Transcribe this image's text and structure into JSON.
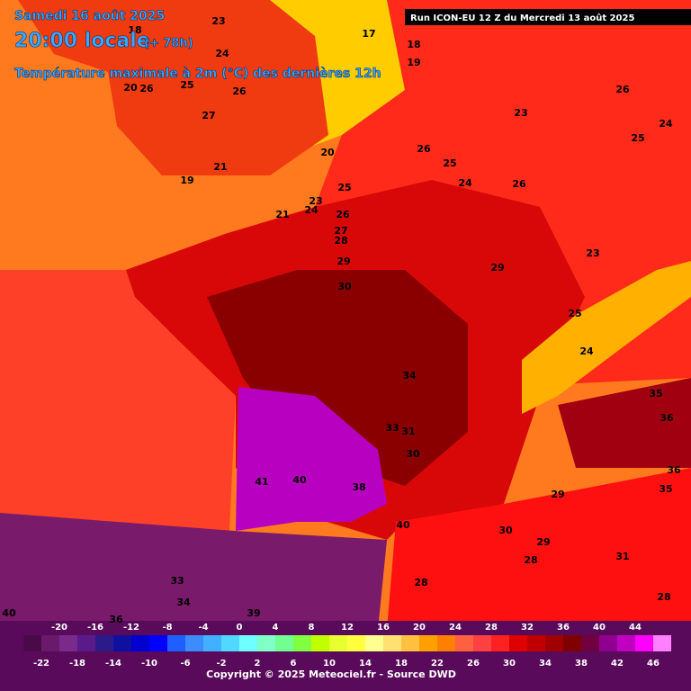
{
  "header": {
    "date": "Samedi 16 août 2025",
    "time": "20:00 locale",
    "lead": "(+ 78h)",
    "field": "Température maximale à 2m (°C) des dernières 12h",
    "run": "Run ICON-EU 12 Z du Mercredi 13 août 2025"
  },
  "map_labels": [
    23,
    18,
    24,
    17,
    18,
    19,
    26,
    20,
    26,
    25,
    26,
    27,
    23,
    24,
    25,
    26,
    25,
    20,
    21,
    19,
    24,
    26,
    25,
    23,
    24,
    26,
    21,
    27,
    28,
    29,
    23,
    29,
    30,
    25,
    24,
    34,
    35,
    36,
    33,
    31,
    30,
    41,
    40,
    38,
    29,
    36,
    35,
    40,
    30,
    29,
    28,
    31,
    33,
    34,
    28,
    28,
    39,
    36,
    40
  ],
  "colorbar": {
    "top_labels": [
      -20,
      -16,
      -12,
      -8,
      -4,
      0,
      4,
      8,
      12,
      16,
      20,
      24,
      28,
      32,
      36,
      40,
      44
    ],
    "bottom_labels": [
      -22,
      -18,
      -14,
      -10,
      -6,
      -2,
      2,
      6,
      10,
      14,
      18,
      22,
      26,
      30,
      34,
      38,
      42,
      46
    ],
    "colors": [
      "#4a0a4a",
      "#6a1a6a",
      "#7a2a8a",
      "#5a1a8a",
      "#2a1a8a",
      "#1010a0",
      "#0000d0",
      "#0000ff",
      "#1f5fff",
      "#3c8cff",
      "#40b0ff",
      "#50d8ff",
      "#70ffff",
      "#80ffc8",
      "#70ff90",
      "#80ff40",
      "#c0ff00",
      "#e8ff30",
      "#ffff40",
      "#ffff90",
      "#ffe070",
      "#ffc040",
      "#ffa000",
      "#ff8000",
      "#ff6040",
      "#ff4040",
      "#ff2020",
      "#e00000",
      "#c00000",
      "#a00000",
      "#800000",
      "#700040",
      "#900090",
      "#c000c0",
      "#ff00ff",
      "#ff80ff"
    ]
  },
  "footer": "Copyright © 2025 Meteociel.fr - Source DWD"
}
